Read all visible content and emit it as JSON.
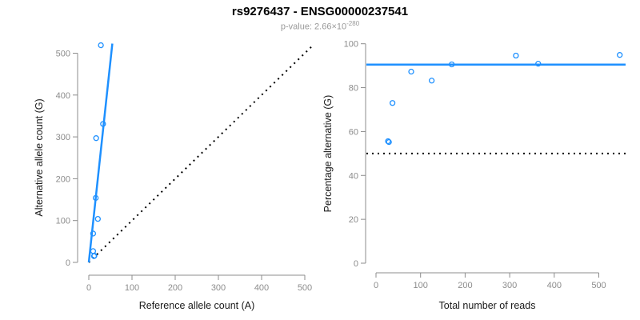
{
  "header": {
    "title": "rs9276437 - ENSG00000237541",
    "subtitle_prefix": "p-value: 2.66×10",
    "subtitle_exponent": "-280"
  },
  "colors": {
    "accent": "#1E90FF",
    "axis": "#8C8C8C",
    "tick_label": "#8C8C8C",
    "axis_title": "#1A1A1A",
    "subtitle": "#999999",
    "dotted_line": "#000000"
  },
  "chart_data": [
    {
      "type": "scatter",
      "name": "allele-counts",
      "xlabel": "Reference allele count (A)",
      "ylabel": "Alternative allele count (G)",
      "xlim": [
        0,
        500
      ],
      "ylim": [
        0,
        520
      ],
      "xticks": [
        0,
        100,
        200,
        300,
        400,
        500
      ],
      "yticks": [
        0,
        100,
        200,
        300,
        400,
        500
      ],
      "grid": false,
      "legend": "none",
      "points": [
        [
          12,
          15
        ],
        [
          13,
          16
        ],
        [
          10,
          27
        ],
        [
          10,
          69
        ],
        [
          21,
          104
        ],
        [
          16,
          154
        ],
        [
          17,
          297
        ],
        [
          33,
          331
        ],
        [
          28,
          519
        ]
      ],
      "regression_line": {
        "slope": 9.6,
        "intercept": 0,
        "style": "solid"
      },
      "identity_line": {
        "slope": 1,
        "intercept": 0,
        "style": "dotted"
      }
    },
    {
      "type": "scatter",
      "name": "percentage-vs-coverage",
      "xlabel": "Total number of reads",
      "ylabel": "Percentage alternative (G)",
      "xlim": [
        0,
        560
      ],
      "ylim": [
        0,
        100
      ],
      "xticks": [
        0,
        100,
        200,
        300,
        400,
        500
      ],
      "yticks": [
        0,
        20,
        40,
        60,
        80,
        100
      ],
      "grid": false,
      "legend": "none",
      "points": [
        [
          27,
          55.6
        ],
        [
          29,
          55.2
        ],
        [
          37,
          73.0
        ],
        [
          79,
          87.3
        ],
        [
          125,
          83.2
        ],
        [
          170,
          90.6
        ],
        [
          314,
          94.6
        ],
        [
          364,
          90.9
        ],
        [
          547,
          94.9
        ]
      ],
      "hline_solid": {
        "y": 90.5,
        "style": "solid"
      },
      "hline_dotted": {
        "y": 50,
        "style": "dotted"
      }
    }
  ]
}
